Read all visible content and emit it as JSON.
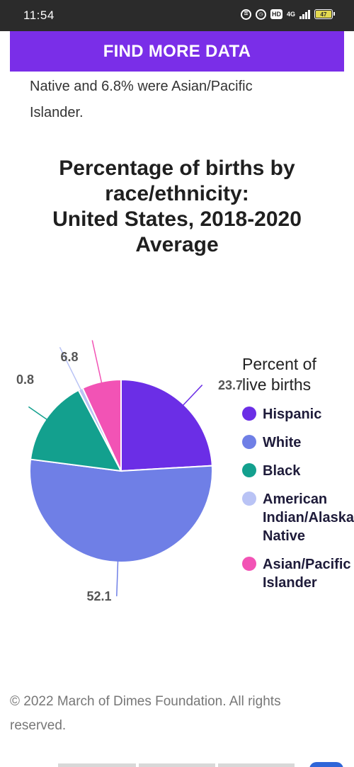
{
  "status_bar": {
    "time": "11:54",
    "icons": [
      "vpn-icon",
      "alarm-icon",
      "hd-icon",
      "network-4g-icon",
      "signal-icon",
      "battery-icon"
    ],
    "hd_label": "HD",
    "network_label": "4G",
    "battery_level": "47"
  },
  "find_more_button": {
    "label": "FIND MORE DATA",
    "color": "#7a2ee8"
  },
  "intro": {
    "line1": "Native and 6.8% were Asian/Pacific",
    "line2": "Islander."
  },
  "chart_title": {
    "line1": "Percentage of births by",
    "line2": "race/ethnicity:",
    "line3": "United States, 2018-2020",
    "line4": "Average"
  },
  "legend": {
    "title_line1": "Percent of",
    "title_line2": "live births",
    "items": [
      {
        "label": "Hispanic",
        "color": "#6b2ee6"
      },
      {
        "label": "White",
        "color": "#6f7fe6"
      },
      {
        "label": "Black",
        "color": "#13a08e"
      },
      {
        "label": "American\nIndian/Alaska\nNative",
        "color": "#b9c3f5"
      },
      {
        "label": "Asian/Pacific\nIslander",
        "color": "#f253b5"
      }
    ]
  },
  "chart_data": {
    "type": "pie",
    "title": "Percentage of births by race/ethnicity: United States, 2018-2020 Average",
    "legend_title": "Percent of live births",
    "legend_position": "right",
    "slices": [
      {
        "label": "Hispanic",
        "value": 23.7,
        "color": "#6b2ee6",
        "data_label": "23.7"
      },
      {
        "label": "White",
        "value": 52.1,
        "color": "#6f7fe6",
        "data_label": "52.1"
      },
      {
        "label": "Black",
        "value": 15.0,
        "color": "#13a08e",
        "data_label": ""
      },
      {
        "label": "American Indian/Alaska Native",
        "value": 0.8,
        "color": "#b9c3f5",
        "data_label": "0.8"
      },
      {
        "label": "Asian/Pacific Islander",
        "value": 6.8,
        "color": "#f253b5",
        "data_label": "6.8"
      }
    ]
  },
  "footer": {
    "copyright": "© 2022 March of Dimes Foundation. All rights reserved."
  }
}
